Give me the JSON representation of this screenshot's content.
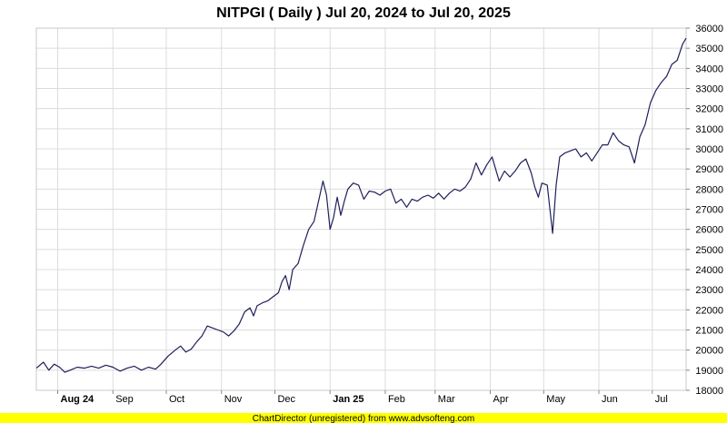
{
  "colors": {
    "line": "#1f1f5a",
    "grid": "#dcdcdc",
    "plot_border": "#c8c8c8",
    "footer_bg": "#ffff00"
  },
  "footer": {
    "text": "ChartDirector (unregistered) from www.advsofteng.com"
  },
  "chart_data": {
    "type": "line",
    "title": "NITPGI ( Daily ) Jul 20, 2024 to Jul 20, 2025",
    "xlabel": "",
    "ylabel": "",
    "x_range": [
      "2024-07-20",
      "2025-07-20"
    ],
    "ylim": [
      18000,
      36000
    ],
    "y_ticks": [
      18000,
      19000,
      20000,
      21000,
      22000,
      23000,
      24000,
      25000,
      26000,
      27000,
      28000,
      29000,
      30000,
      31000,
      32000,
      33000,
      34000,
      35000,
      36000
    ],
    "y_axis_position": "right",
    "grid": true,
    "x_ticks": [
      {
        "date": "2024-08-01",
        "label": "Aug 24",
        "bold": true
      },
      {
        "date": "2024-09-01",
        "label": "Sep",
        "bold": false
      },
      {
        "date": "2024-10-01",
        "label": "Oct",
        "bold": false
      },
      {
        "date": "2024-11-01",
        "label": "Nov",
        "bold": false
      },
      {
        "date": "2024-12-01",
        "label": "Dec",
        "bold": false
      },
      {
        "date": "2025-01-01",
        "label": "Jan 25",
        "bold": true
      },
      {
        "date": "2025-02-01",
        "label": "Feb",
        "bold": false
      },
      {
        "date": "2025-03-01",
        "label": "Mar",
        "bold": false
      },
      {
        "date": "2025-04-01",
        "label": "Apr",
        "bold": false
      },
      {
        "date": "2025-05-01",
        "label": "May",
        "bold": false
      },
      {
        "date": "2025-06-01",
        "label": "Jun",
        "bold": false
      },
      {
        "date": "2025-07-01",
        "label": "Jul",
        "bold": false
      }
    ],
    "series": [
      {
        "points": [
          [
            "2024-07-20",
            19100
          ],
          [
            "2024-07-24",
            19400
          ],
          [
            "2024-07-27",
            19000
          ],
          [
            "2024-07-30",
            19300
          ],
          [
            "2024-08-02",
            19150
          ],
          [
            "2024-08-05",
            18900
          ],
          [
            "2024-08-08",
            19000
          ],
          [
            "2024-08-12",
            19150
          ],
          [
            "2024-08-16",
            19100
          ],
          [
            "2024-08-20",
            19200
          ],
          [
            "2024-08-24",
            19100
          ],
          [
            "2024-08-28",
            19250
          ],
          [
            "2024-09-01",
            19150
          ],
          [
            "2024-09-05",
            18950
          ],
          [
            "2024-09-09",
            19100
          ],
          [
            "2024-09-13",
            19200
          ],
          [
            "2024-09-17",
            19000
          ],
          [
            "2024-09-21",
            19150
          ],
          [
            "2024-09-25",
            19050
          ],
          [
            "2024-09-28",
            19300
          ],
          [
            "2024-10-02",
            19700
          ],
          [
            "2024-10-06",
            20000
          ],
          [
            "2024-10-09",
            20200
          ],
          [
            "2024-10-12",
            19900
          ],
          [
            "2024-10-15",
            20050
          ],
          [
            "2024-10-18",
            20400
          ],
          [
            "2024-10-21",
            20700
          ],
          [
            "2024-10-24",
            21200
          ],
          [
            "2024-10-27",
            21100
          ],
          [
            "2024-10-30",
            21000
          ],
          [
            "2024-11-02",
            20900
          ],
          [
            "2024-11-05",
            20700
          ],
          [
            "2024-11-08",
            20950
          ],
          [
            "2024-11-11",
            21300
          ],
          [
            "2024-11-14",
            21900
          ],
          [
            "2024-11-17",
            22100
          ],
          [
            "2024-11-19",
            21700
          ],
          [
            "2024-11-21",
            22200
          ],
          [
            "2024-11-24",
            22350
          ],
          [
            "2024-11-27",
            22450
          ],
          [
            "2024-11-30",
            22650
          ],
          [
            "2024-12-03",
            22850
          ],
          [
            "2024-12-05",
            23400
          ],
          [
            "2024-12-07",
            23700
          ],
          [
            "2024-12-09",
            23000
          ],
          [
            "2024-12-11",
            24000
          ],
          [
            "2024-12-14",
            24300
          ],
          [
            "2024-12-17",
            25200
          ],
          [
            "2024-12-20",
            26000
          ],
          [
            "2024-12-23",
            26400
          ],
          [
            "2024-12-26",
            27600
          ],
          [
            "2024-12-28",
            28400
          ],
          [
            "2024-12-30",
            27700
          ],
          [
            "2025-01-01",
            26000
          ],
          [
            "2025-01-03",
            26600
          ],
          [
            "2025-01-05",
            27600
          ],
          [
            "2025-01-07",
            26700
          ],
          [
            "2025-01-09",
            27400
          ],
          [
            "2025-01-11",
            28000
          ],
          [
            "2025-01-14",
            28300
          ],
          [
            "2025-01-17",
            28200
          ],
          [
            "2025-01-20",
            27500
          ],
          [
            "2025-01-23",
            27900
          ],
          [
            "2025-01-26",
            27850
          ],
          [
            "2025-01-29",
            27700
          ],
          [
            "2025-02-01",
            27900
          ],
          [
            "2025-02-04",
            28000
          ],
          [
            "2025-02-07",
            27300
          ],
          [
            "2025-02-10",
            27500
          ],
          [
            "2025-02-13",
            27100
          ],
          [
            "2025-02-16",
            27500
          ],
          [
            "2025-02-19",
            27400
          ],
          [
            "2025-02-22",
            27600
          ],
          [
            "2025-02-25",
            27700
          ],
          [
            "2025-02-28",
            27550
          ],
          [
            "2025-03-03",
            27800
          ],
          [
            "2025-03-06",
            27500
          ],
          [
            "2025-03-09",
            27800
          ],
          [
            "2025-03-12",
            28000
          ],
          [
            "2025-03-15",
            27900
          ],
          [
            "2025-03-18",
            28100
          ],
          [
            "2025-03-21",
            28500
          ],
          [
            "2025-03-24",
            29300
          ],
          [
            "2025-03-27",
            28700
          ],
          [
            "2025-03-30",
            29200
          ],
          [
            "2025-04-02",
            29600
          ],
          [
            "2025-04-04",
            29000
          ],
          [
            "2025-04-06",
            28400
          ],
          [
            "2025-04-09",
            28900
          ],
          [
            "2025-04-12",
            28600
          ],
          [
            "2025-04-15",
            28900
          ],
          [
            "2025-04-18",
            29300
          ],
          [
            "2025-04-21",
            29500
          ],
          [
            "2025-04-24",
            28800
          ],
          [
            "2025-04-26",
            28100
          ],
          [
            "2025-04-28",
            27600
          ],
          [
            "2025-04-30",
            28300
          ],
          [
            "2025-05-03",
            28200
          ],
          [
            "2025-05-06",
            25800
          ],
          [
            "2025-05-08",
            28200
          ],
          [
            "2025-05-10",
            29600
          ],
          [
            "2025-05-13",
            29800
          ],
          [
            "2025-05-16",
            29900
          ],
          [
            "2025-05-19",
            30000
          ],
          [
            "2025-05-22",
            29600
          ],
          [
            "2025-05-25",
            29800
          ],
          [
            "2025-05-28",
            29400
          ],
          [
            "2025-05-31",
            29800
          ],
          [
            "2025-06-03",
            30200
          ],
          [
            "2025-06-06",
            30200
          ],
          [
            "2025-06-09",
            30800
          ],
          [
            "2025-06-12",
            30400
          ],
          [
            "2025-06-15",
            30200
          ],
          [
            "2025-06-18",
            30100
          ],
          [
            "2025-06-21",
            29300
          ],
          [
            "2025-06-24",
            30600
          ],
          [
            "2025-06-27",
            31200
          ],
          [
            "2025-06-30",
            32300
          ],
          [
            "2025-07-03",
            32900
          ],
          [
            "2025-07-06",
            33300
          ],
          [
            "2025-07-09",
            33600
          ],
          [
            "2025-07-12",
            34200
          ],
          [
            "2025-07-15",
            34400
          ],
          [
            "2025-07-18",
            35200
          ],
          [
            "2025-07-20",
            35500
          ]
        ]
      }
    ]
  }
}
